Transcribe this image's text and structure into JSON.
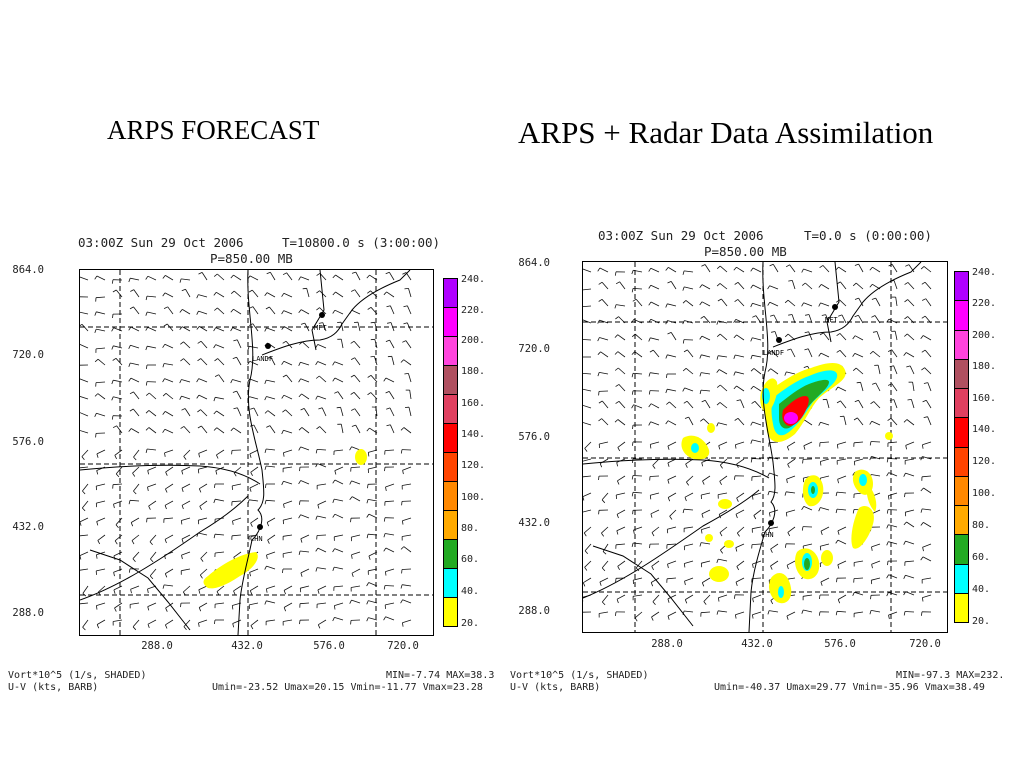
{
  "titles": {
    "left": "ARPS FORECAST",
    "right": "ARPS  + Radar Data Assimilation"
  },
  "panels": [
    {
      "header_time": "03:00Z Sun 29 Oct 2006",
      "header_t": "T=10800.0 s (3:00:00)",
      "header_p": "P=850.00 MB",
      "yticks": [
        "864.0",
        "720.0",
        "576.0",
        "432.0",
        "288.0"
      ],
      "xticks": [
        "288.0",
        "432.0",
        "576.0",
        "720.0"
      ],
      "stations": [
        "MFT",
        "LANDF",
        "CHN"
      ],
      "colorbar_levels": [
        "240.",
        "220.",
        "200.",
        "180.",
        "160.",
        "140.",
        "120.",
        "100.",
        "80.",
        "60.",
        "40.",
        "20."
      ],
      "footer": {
        "line1_left": "Vort*10^5 (1/s, SHADED)",
        "line2_left": "U-V (kts, BARB)",
        "line1_right": "MIN=-7.74 MAX=38.3",
        "line2_right": "Umin=-23.52 Umax=20.15 Vmin=-11.77 Vmax=23.28"
      }
    },
    {
      "header_time": "03:00Z Sun 29 Oct 2006",
      "header_t": "T=0.0 s (0:00:00)",
      "header_p": "P=850.00 MB",
      "yticks": [
        "864.0",
        "720.0",
        "576.0",
        "432.0",
        "288.0"
      ],
      "xticks": [
        "288.0",
        "432.0",
        "576.0",
        "720.0"
      ],
      "stations": [
        "MFT",
        "LANDF",
        "CHN"
      ],
      "colorbar_levels": [
        "240.",
        "220.",
        "200.",
        "180.",
        "160.",
        "140.",
        "120.",
        "100.",
        "80.",
        "60.",
        "40.",
        "20."
      ],
      "footer": {
        "line1_left": "Vort*10^5 (1/s, SHADED)",
        "line2_left": "U-V (kts, BARB)",
        "line1_right": "MIN=-97.3 MAX=232.",
        "line2_right": "Umin=-40.37 Umax=29.77 Vmin=-35.96 Vmax=38.49"
      }
    }
  ],
  "colorbar_colors": [
    "#b000ff",
    "#ff00ff",
    "#ff44dd",
    "#b05060",
    "#e04060",
    "#ff0000",
    "#ff4400",
    "#ff8800",
    "#ffaa00",
    "#22aa22",
    "#00ffff",
    "#ffff00"
  ]
}
